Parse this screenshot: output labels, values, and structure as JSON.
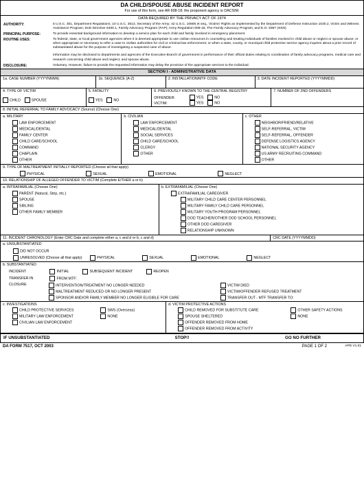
{
  "header": {
    "title": "DA CHILD/SPOUSE ABUSE INCIDENT REPORT",
    "subtitle": "For use of this form, see AR 608-18; the proponent agency is OACSIM.",
    "privacy": "DATA REQUIRED BY THE PRIVACY ACT OF 1974"
  },
  "authority": {
    "auth_lbl": "AUTHORITY:",
    "auth_txt": "5 U.S.C. 301, Department Regulations; 10 U.S.C. 3013, Secretary of the Army; 42 U.S.C. 10606 et seq., Victims' Rights as implemented by the Department of Defense Instruction 1030.2, Victim and Witness Assistance Program; DoD Directive 6400.1, Family Advocacy Program (FAP); Army Regulation 608-18, The Family Advocacy Program; and E.O. 9397 (SSN)",
    "pp_lbl": "PRINCIPAL PURPOSE:",
    "pp_txt": "To provide essential background information to develop a service plan for each child and family involved in emergency placement.",
    "ru_lbl": "ROUTINE USES:",
    "ru_txt1": "To federal, state, or local government agencies when it is deemed appropriate to use civilian resources in counseling and treating individuals of families involved in child abuse or neglect or spouse abuse; or when appropriate or necessary to refer a case to civilian authorities for civil or criminal law enforcement; or when a state, county, or municipal child protective service agency inquires about a prior record of substantiated abuse for the purpose of investigating a suspected case of abuse.",
    "ru_txt2": "Information may be disclosed to departments and agencies of the Executive Branch of government in performance of their official duties relating to coordination of family advocacy programs, medical care and research concerning child abuse and neglect, and spouse abuse.",
    "disc_lbl": "DISCLOSURE:",
    "disc_txt": "Voluntary.  However, failure to provide the requested information may delay the provision of the appropriate services to the individual."
  },
  "sectionI": "SECTION I - ADMINISTRATIVE DATA",
  "row1": {
    "a": "1a.  CASE NUMBER (YYYYNNNN)",
    "b": "1b.  SEQUENCE (A-Z)",
    "c": "2.  INSTALLATION/MTF CODE",
    "d": "3.  DATE INCIDENT REPORTED  (YYYYMMDD)"
  },
  "row2": {
    "c4": "4.  TYPE OF VICTIM",
    "c4a": "CHILD",
    "c4b": "SPOUSE",
    "c5": "5.  FATALITY",
    "c5a": "YES",
    "c5b": "NO",
    "c6": "6.  PREVIOUSLY KNOWN TO THE CENTRAL REGISTRY",
    "c6off": "OFFENDER:",
    "c6vic": "VICTIM:",
    "yes": "YES",
    "no": "NO",
    "c7": "7.  NUMBER OF 2ND OFFENDERS"
  },
  "s8": {
    "hdr": "8.  INITIAL REFERRAL TO FAMILY ADVOCACY  (Source) (Choose One)",
    "a": "a.  MILITARY",
    "b": "b.  CIVILIAN",
    "c": "c.  OTHER",
    "mil": [
      "LAW ENFORCEMENT",
      "MEDICAL/DENTAL",
      "FAMILY CENTER",
      "CHILD CARE/SCHOOL",
      "COMMAND",
      "CHAPLAIN",
      "OTHER"
    ],
    "civ": [
      "LAW ENFORCEMENT",
      "MEDICAL/DENTAL",
      "SOCIAL SERVICES",
      "CHILD CARE/SCHOOL",
      "CLERGY",
      "OTHER"
    ],
    "oth": [
      "NEIGHBOR/FRIEND/RELATIVE",
      "SELF-REFERRAL, VICTIM",
      "SELF-REFERRAL, OFFENDER",
      "DEFENSE LOGISTICS AGENCY",
      "NATIONAL SECURITY AGENCY",
      "US ARMY RECRUITING COMMAND",
      "OTHER"
    ]
  },
  "s9": {
    "hdr": "9.  TYPE OF MALTREATMENT INITIALLY REPORTED (Choose all that apply)",
    "opts": [
      "PHYSICAL",
      "SEXUAL",
      "EMOTIONAL",
      "NEGLECT"
    ]
  },
  "s10": {
    "hdr": "10.  RELATIONSHIP OF ALLEGED OFFENDER TO VICTIM (Complete EITHER a or b)",
    "a_hdr": "a.  INTRAFAMILIAL (Choose One)",
    "a_opts": [
      "PARENT (Natural, Step, etc.)",
      "SPOUSE",
      "SIBLING",
      "OTHER FAMILY MEMBER"
    ],
    "b_hdr": "b.  EXTRAFAMILIAL (Choose One)",
    "b_opts": [
      "EXTRAFAMILIAL CAREGIVER",
      "MILITARY CHILD CARE CENTER PERSONNEL",
      "MILITARY FAMILY CHILD CARE PERSONNEL",
      "MILITARY YOUTH PROGRAM PERSONNEL",
      "DOD TEACHER/OTHER DOD SCHOOL PERSONNEL",
      "OTHER DOD CAREGIVER",
      "RELATIONSHIP UNKNOWN"
    ]
  },
  "s11": {
    "hdr": "11.  INCIDENT CHRONOLOGY (Enter CRC Date and complete either a, c and d or b, c and d)",
    "crc": "CRC DATE (YYYYMMDD)",
    "a_hdr": "a.  UNSUBSTANTIATED",
    "a_did": "DID NOT OCCUR",
    "a_unres": "UNRESOLVED (Choose all that apply)",
    "a_opts": [
      "PHYSICAL",
      "SEXUAL",
      "EMOTIONAL",
      "NEGLECT"
    ],
    "b_hdr": "b.  SUBSTANTIATED",
    "b_inc": "INCIDENT",
    "b_inc_opts": [
      "INITIAL",
      "SUBSEQUENT INCIDENT",
      "REOPEN"
    ],
    "b_tin": "TRANSFER IN",
    "b_tin_from": "FROM MTF:",
    "b_clo": "CLOSURE",
    "b_clo_left": [
      "INTERVENTION/TREATMENT NO LONGER NEEDED",
      "MALTREATMENT REDUCED OR NO LONGER PRESENT",
      "SPONSOR AND/OR FAMILY MEMBER NO LONGER ELIGIBLE FOR CARE"
    ],
    "b_clo_right": [
      "VICTIM DIED",
      "VICTIM/OFFENDER REFUSED TREATMENT",
      "TRANSFER OUT - MTF TRANSFER TO:"
    ],
    "c_hdr": "c.  INVESTIGATIONS",
    "c_left": [
      "CHILD PROTECTIVE SERVICES",
      "MILITARY LAW ENFORCEMENT",
      "CIVILIAN LAW ENFORCEMENT"
    ],
    "c_right": [
      "SWS (Overseas)",
      "NONE"
    ],
    "d_hdr": "d.  VICTIM PROTECTIVE ACTIONS",
    "d_left": [
      "CHILD REMOVED FOR SUBSTITUTE CARE",
      "SPOUSE SHELTERED",
      "OFFENDER REMOVED FROM HOME",
      "OFFENDER REMOVED FROM ACTIVITY"
    ],
    "d_right": [
      "OTHER SAFETY ACTIONS",
      "NONE"
    ]
  },
  "stop": {
    "a": "IF UNSUBSTANTIATED",
    "b": "STOP!!",
    "c": "GO NO FURTHER"
  },
  "footer": {
    "left": "DA FORM 7517, OCT 2003",
    "mid": "PAGE 1 OF 2",
    "right": "APD V1.01"
  }
}
